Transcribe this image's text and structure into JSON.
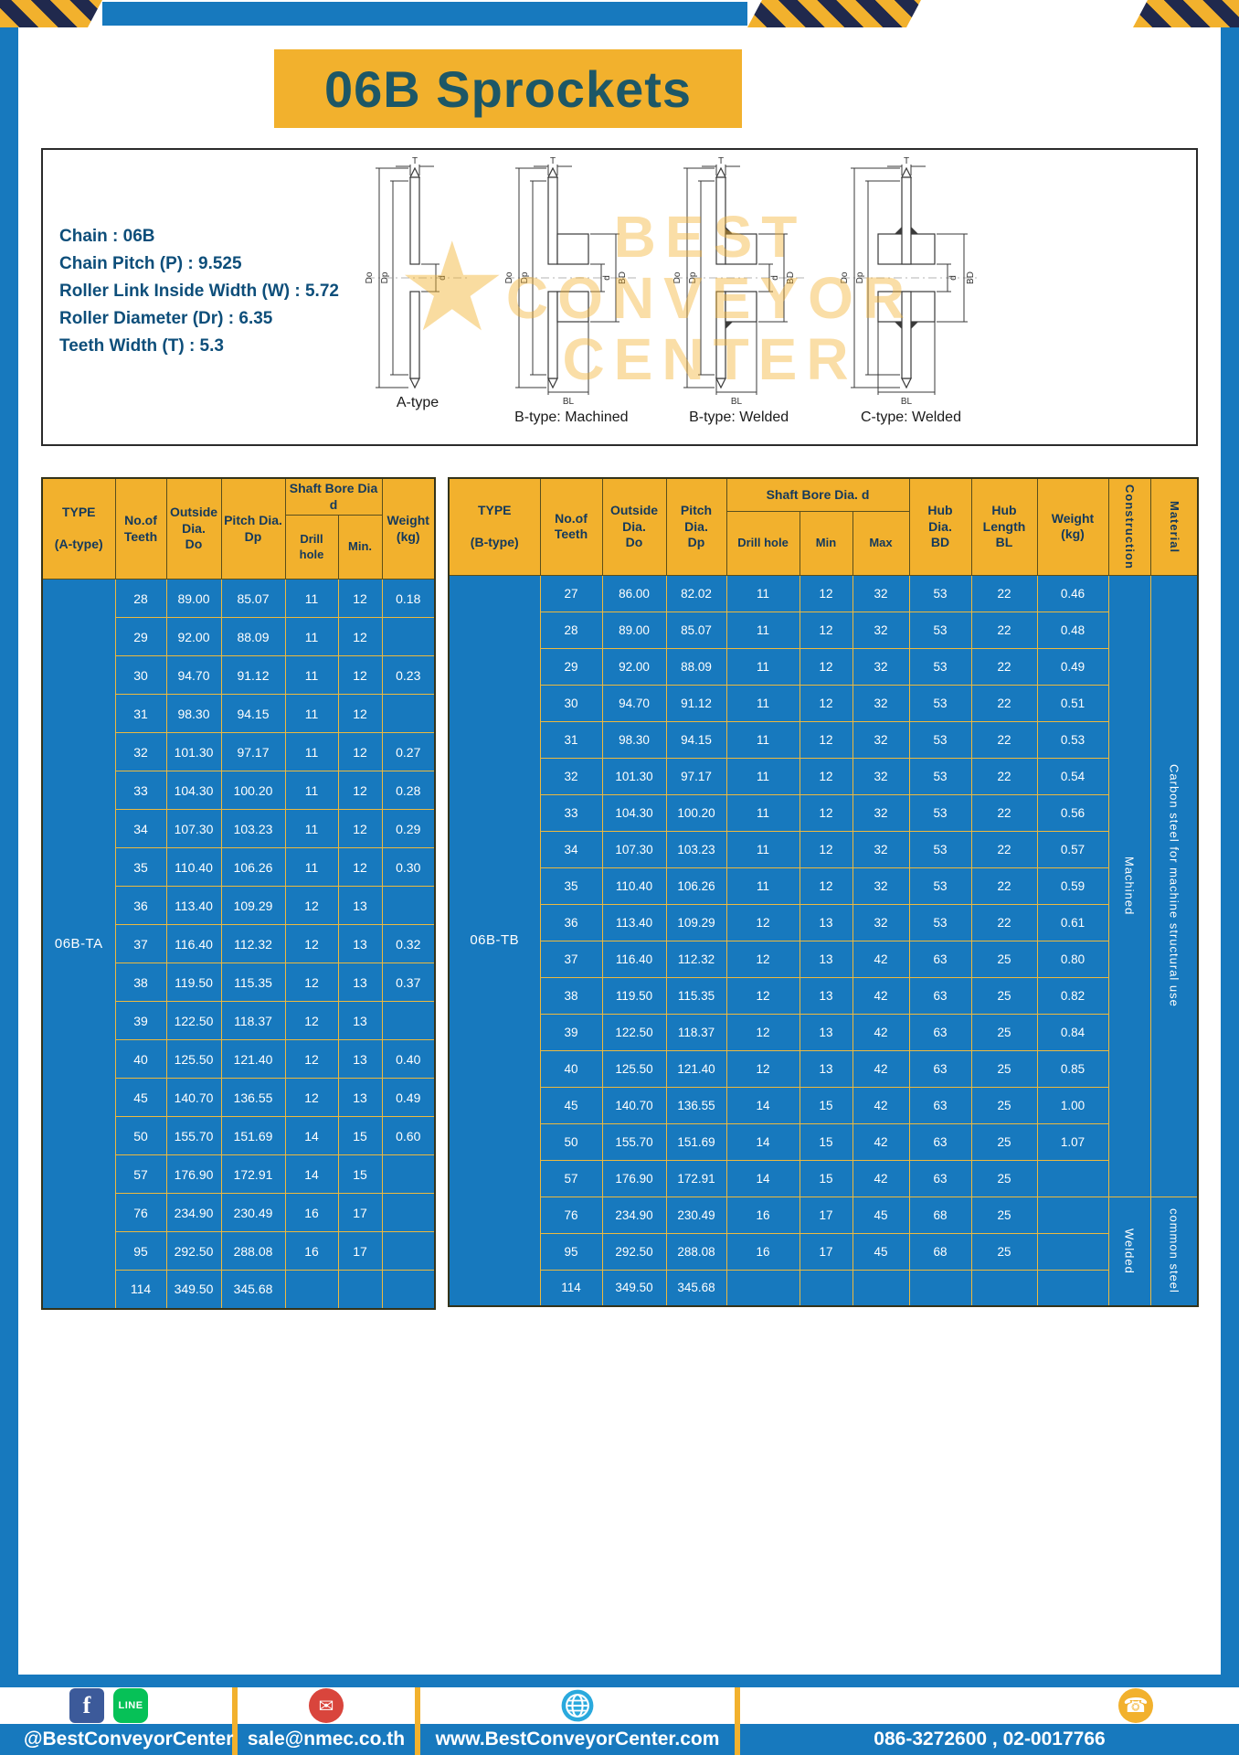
{
  "title": "06B Sprockets",
  "colors": {
    "blue": "#1779be",
    "yellow": "#f2b12d",
    "title_text": "#1d5766",
    "spec_text": "#0d4e7a"
  },
  "specs": {
    "lines": [
      "Chain : 06B",
      "Chain Pitch (P) : 9.525",
      "Roller Link Inside Width (W) : 5.72",
      "Roller Diameter (Dr) : 6.35",
      "Teeth Width (T) : 5.3"
    ],
    "watermark": [
      "BEST",
      "CONVEYOR",
      "CENTER"
    ],
    "star": "★",
    "figures": [
      {
        "label": "A-type",
        "t": "T",
        "do": "Do",
        "dp": "Dp",
        "d": "d"
      },
      {
        "label": "B-type: Machined",
        "t": "T",
        "do": "Do",
        "dp": "Dp",
        "d": "d",
        "bd": "BD",
        "bl": "BL"
      },
      {
        "label": "B-type: Welded",
        "t": "T",
        "do": "Do",
        "dp": "Dp",
        "d": "d",
        "bd": "BD",
        "bl": "BL"
      },
      {
        "label": "C-type: Welded",
        "t": "T",
        "do": "Do",
        "dp": "Dp",
        "d": "d",
        "bd": "BD",
        "bl": "BL"
      }
    ]
  },
  "table_a": {
    "type_value": "06B-TA",
    "header": {
      "type": "TYPE\n\n(A-type)",
      "teeth": "No.of\nTeeth",
      "outside": "Outside\nDia.\nDo",
      "pitch": "Pitch Dia.\nDp",
      "bore_group": "Shaft Bore Dia d",
      "drill": "Drill hole",
      "min": "Min.",
      "weight": "Weight\n(kg)"
    },
    "rows": [
      [
        "28",
        "89.00",
        "85.07",
        "11",
        "12",
        "0.18"
      ],
      [
        "29",
        "92.00",
        "88.09",
        "11",
        "12",
        ""
      ],
      [
        "30",
        "94.70",
        "91.12",
        "11",
        "12",
        "0.23"
      ],
      [
        "31",
        "98.30",
        "94.15",
        "11",
        "12",
        ""
      ],
      [
        "32",
        "101.30",
        "97.17",
        "11",
        "12",
        "0.27"
      ],
      [
        "33",
        "104.30",
        "100.20",
        "11",
        "12",
        "0.28"
      ],
      [
        "34",
        "107.30",
        "103.23",
        "11",
        "12",
        "0.29"
      ],
      [
        "35",
        "110.40",
        "106.26",
        "11",
        "12",
        "0.30"
      ],
      [
        "36",
        "113.40",
        "109.29",
        "12",
        "13",
        ""
      ],
      [
        "37",
        "116.40",
        "112.32",
        "12",
        "13",
        "0.32"
      ],
      [
        "38",
        "119.50",
        "115.35",
        "12",
        "13",
        "0.37"
      ],
      [
        "39",
        "122.50",
        "118.37",
        "12",
        "13",
        ""
      ],
      [
        "40",
        "125.50",
        "121.40",
        "12",
        "13",
        "0.40"
      ],
      [
        "45",
        "140.70",
        "136.55",
        "12",
        "13",
        "0.49"
      ],
      [
        "50",
        "155.70",
        "151.69",
        "14",
        "15",
        "0.60"
      ],
      [
        "57",
        "176.90",
        "172.91",
        "14",
        "15",
        ""
      ],
      [
        "76",
        "234.90",
        "230.49",
        "16",
        "17",
        ""
      ],
      [
        "95",
        "292.50",
        "288.08",
        "16",
        "17",
        ""
      ],
      [
        "114",
        "349.50",
        "345.68",
        "",
        "",
        ""
      ]
    ]
  },
  "table_b": {
    "type_value": "06B-TB",
    "header": {
      "type": "TYPE\n\n(B-type)",
      "teeth": "No.of\nTeeth",
      "outside": "Outside\nDia.\nDo",
      "pitch": "Pitch\nDia.\nDp",
      "bore_group": "Shaft Bore Dia. d",
      "drill": "Drill hole",
      "min": "Min",
      "max": "Max",
      "hub_dia": "Hub\nDia.\nBD",
      "hub_len": "Hub\nLength\nBL",
      "weight": "Weight\n(kg)",
      "construction": "Construction",
      "material": "Material"
    },
    "rows": [
      [
        "27",
        "86.00",
        "82.02",
        "11",
        "12",
        "32",
        "53",
        "22",
        "0.46"
      ],
      [
        "28",
        "89.00",
        "85.07",
        "11",
        "12",
        "32",
        "53",
        "22",
        "0.48"
      ],
      [
        "29",
        "92.00",
        "88.09",
        "11",
        "12",
        "32",
        "53",
        "22",
        "0.49"
      ],
      [
        "30",
        "94.70",
        "91.12",
        "11",
        "12",
        "32",
        "53",
        "22",
        "0.51"
      ],
      [
        "31",
        "98.30",
        "94.15",
        "11",
        "12",
        "32",
        "53",
        "22",
        "0.53"
      ],
      [
        "32",
        "101.30",
        "97.17",
        "11",
        "12",
        "32",
        "53",
        "22",
        "0.54"
      ],
      [
        "33",
        "104.30",
        "100.20",
        "11",
        "12",
        "32",
        "53",
        "22",
        "0.56"
      ],
      [
        "34",
        "107.30",
        "103.23",
        "11",
        "12",
        "32",
        "53",
        "22",
        "0.57"
      ],
      [
        "35",
        "110.40",
        "106.26",
        "11",
        "12",
        "32",
        "53",
        "22",
        "0.59"
      ],
      [
        "36",
        "113.40",
        "109.29",
        "12",
        "13",
        "32",
        "53",
        "22",
        "0.61"
      ],
      [
        "37",
        "116.40",
        "112.32",
        "12",
        "13",
        "42",
        "63",
        "25",
        "0.80"
      ],
      [
        "38",
        "119.50",
        "115.35",
        "12",
        "13",
        "42",
        "63",
        "25",
        "0.82"
      ],
      [
        "39",
        "122.50",
        "118.37",
        "12",
        "13",
        "42",
        "63",
        "25",
        "0.84"
      ],
      [
        "40",
        "125.50",
        "121.40",
        "12",
        "13",
        "42",
        "63",
        "25",
        "0.85"
      ],
      [
        "45",
        "140.70",
        "136.55",
        "14",
        "15",
        "42",
        "63",
        "25",
        "1.00"
      ],
      [
        "50",
        "155.70",
        "151.69",
        "14",
        "15",
        "42",
        "63",
        "25",
        "1.07"
      ],
      [
        "57",
        "176.90",
        "172.91",
        "14",
        "15",
        "42",
        "63",
        "25",
        ""
      ],
      [
        "76",
        "234.90",
        "230.49",
        "16",
        "17",
        "45",
        "68",
        "25",
        ""
      ],
      [
        "95",
        "292.50",
        "288.08",
        "16",
        "17",
        "45",
        "68",
        "25",
        ""
      ],
      [
        "114",
        "349.50",
        "345.68",
        "",
        "",
        "",
        "",
        "",
        ""
      ]
    ],
    "construction_groups": [
      {
        "label": "Machined",
        "span": 17
      },
      {
        "label": "Welded",
        "span": 3
      }
    ],
    "material_groups": [
      {
        "label": "Carbon steel for machine structural use",
        "span": 17
      },
      {
        "label": "common steel",
        "span": 3
      }
    ]
  },
  "footer": {
    "social_handle": "@BestConveyorCenter",
    "email": "sale@nmec.co.th",
    "website": "www.BestConveyorCenter.com",
    "phones": "086-3272600 , 02-0017766",
    "icons": {
      "facebook": "f",
      "line": "LINE",
      "mail": "✉",
      "phone": "☎"
    }
  }
}
